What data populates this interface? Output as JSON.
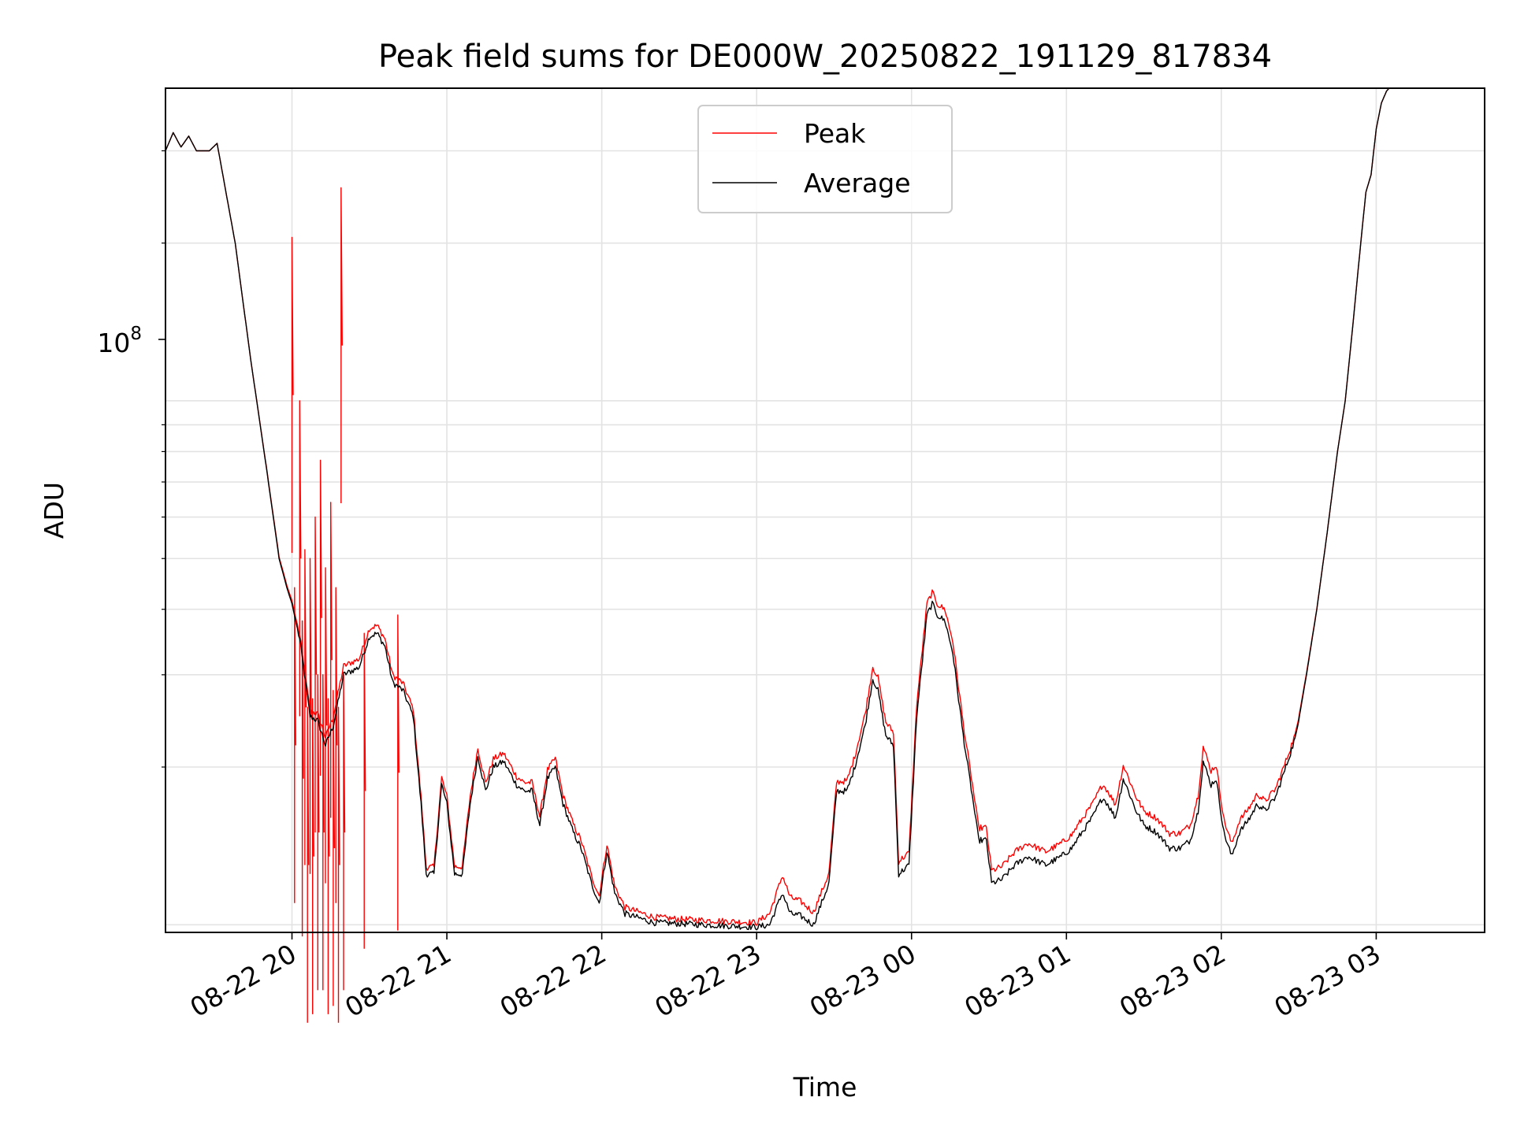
{
  "chart_data": {
    "type": "line",
    "title": "Peak field sums for DE000W_20250822_191129_817834",
    "xlabel": "Time",
    "ylabel": "ADU",
    "xlim": [
      "2025-08-22 19:11",
      "2025-08-23 03:42"
    ],
    "ylim": [
      9670000.0,
      395000000.0
    ],
    "yscale": "log",
    "ytick_label": {
      "base": "10",
      "exp": "8",
      "value": 100000000.0
    },
    "xticks": [
      {
        "t": "2025-08-22 20:00",
        "label": "08-22 20"
      },
      {
        "t": "2025-08-22 21:00",
        "label": "08-22 21"
      },
      {
        "t": "2025-08-22 22:00",
        "label": "08-22 22"
      },
      {
        "t": "2025-08-22 23:00",
        "label": "08-22 23"
      },
      {
        "t": "2025-08-23 00:00",
        "label": "08-23 00"
      },
      {
        "t": "2025-08-23 01:00",
        "label": "08-23 01"
      },
      {
        "t": "2025-08-23 02:00",
        "label": "08-23 02"
      },
      {
        "t": "2025-08-23 03:00",
        "label": "08-23 03"
      }
    ],
    "grid": true,
    "legend": {
      "position": "top-center"
    },
    "series": [
      {
        "name": "Peak",
        "color": "#ff0000"
      },
      {
        "name": "Average",
        "color": "#000000"
      }
    ],
    "average_points": [
      [
        "2025-08-22 19:11",
        300000000.0
      ],
      [
        "2025-08-22 19:14",
        325000000.0
      ],
      [
        "2025-08-22 19:17",
        305000000.0
      ],
      [
        "2025-08-22 19:20",
        320000000.0
      ],
      [
        "2025-08-22 19:23",
        300000000.0
      ],
      [
        "2025-08-22 19:28",
        300000000.0
      ],
      [
        "2025-08-22 19:31",
        310000000.0
      ],
      [
        "2025-08-22 19:38",
        200000000.0
      ],
      [
        "2025-08-22 19:44",
        120000000.0
      ],
      [
        "2025-08-22 19:50",
        75000000.0
      ],
      [
        "2025-08-22 19:55",
        50000000.0
      ],
      [
        "2025-08-22 19:58",
        44000000.0
      ],
      [
        "2025-08-22 20:00",
        41000000.0
      ],
      [
        "2025-08-22 20:03",
        35000000.0
      ],
      [
        "2025-08-22 20:07",
        25000000.0
      ],
      [
        "2025-08-22 20:10",
        24500000.0
      ],
      [
        "2025-08-22 20:13",
        22000000.0
      ],
      [
        "2025-08-22 20:16",
        24000000.0
      ],
      [
        "2025-08-22 20:20",
        30000000.0
      ],
      [
        "2025-08-22 20:26",
        31000000.0
      ],
      [
        "2025-08-22 20:30",
        35500000.0
      ],
      [
        "2025-08-22 20:33",
        36000000.0
      ],
      [
        "2025-08-22 20:36",
        34000000.0
      ],
      [
        "2025-08-22 20:39",
        29000000.0
      ],
      [
        "2025-08-22 20:43",
        28000000.0
      ],
      [
        "2025-08-22 20:47",
        25000000.0
      ],
      [
        "2025-08-22 20:50",
        17000000.0
      ],
      [
        "2025-08-22 20:52",
        12500000.0
      ],
      [
        "2025-08-22 20:55",
        12500000.0
      ],
      [
        "2025-08-22 20:58",
        18500000.0
      ],
      [
        "2025-08-22 21:00",
        17000000.0
      ],
      [
        "2025-08-22 21:03",
        12500000.0
      ],
      [
        "2025-08-22 21:06",
        12500000.0
      ],
      [
        "2025-08-22 21:09",
        17000000.0
      ],
      [
        "2025-08-22 21:12",
        21000000.0
      ],
      [
        "2025-08-22 21:15",
        18000000.0
      ],
      [
        "2025-08-22 21:18",
        20000000.0
      ],
      [
        "2025-08-22 21:22",
        20500000.0
      ],
      [
        "2025-08-22 21:27",
        18500000.0
      ],
      [
        "2025-08-22 21:30",
        18000000.0
      ],
      [
        "2025-08-22 21:33",
        18000000.0
      ],
      [
        "2025-08-22 21:36",
        15500000.0
      ],
      [
        "2025-08-22 21:39",
        19000000.0
      ],
      [
        "2025-08-22 21:42",
        20000000.0
      ],
      [
        "2025-08-22 21:45",
        17000000.0
      ],
      [
        "2025-08-22 21:49",
        15000000.0
      ],
      [
        "2025-08-22 21:52",
        14000000.0
      ],
      [
        "2025-08-22 21:56",
        12000000.0
      ],
      [
        "2025-08-22 21:59",
        11000000.0
      ],
      [
        "2025-08-22 22:02",
        13800000.0
      ],
      [
        "2025-08-22 22:05",
        11500000.0
      ],
      [
        "2025-08-22 22:09",
        10500000.0
      ],
      [
        "2025-08-22 22:20",
        10100000.0
      ],
      [
        "2025-08-22 22:40",
        10000000.0
      ],
      [
        "2025-08-22 23:00",
        9900000.0
      ],
      [
        "2025-08-22 23:05",
        10000000.0
      ],
      [
        "2025-08-22 23:10",
        11500000.0
      ],
      [
        "2025-08-22 23:13",
        10500000.0
      ],
      [
        "2025-08-22 23:17",
        10400000.0
      ],
      [
        "2025-08-22 23:22",
        10000000.0
      ],
      [
        "2025-08-22 23:28",
        12000000.0
      ],
      [
        "2025-08-22 23:31",
        18000000.0
      ],
      [
        "2025-08-22 23:35",
        18000000.0
      ],
      [
        "2025-08-22 23:38",
        20000000.0
      ],
      [
        "2025-08-22 23:42",
        24000000.0
      ],
      [
        "2025-08-22 23:45",
        29500000.0
      ],
      [
        "2025-08-22 23:47",
        28000000.0
      ],
      [
        "2025-08-22 23:50",
        23000000.0
      ],
      [
        "2025-08-22 23:53",
        22000000.0
      ],
      [
        "2025-08-22 23:55",
        12500000.0
      ],
      [
        "2025-08-22 23:59",
        13000000.0
      ],
      [
        "2025-08-23 00:02",
        25000000.0
      ],
      [
        "2025-08-23 00:06",
        39000000.0
      ],
      [
        "2025-08-23 00:08",
        41000000.0
      ],
      [
        "2025-08-23 00:10",
        39000000.0
      ],
      [
        "2025-08-23 00:13",
        38000000.0
      ],
      [
        "2025-08-23 00:16",
        33000000.0
      ],
      [
        "2025-08-23 00:20",
        23000000.0
      ],
      [
        "2025-08-23 00:24",
        17000000.0
      ],
      [
        "2025-08-23 00:26",
        14500000.0
      ],
      [
        "2025-08-23 00:29",
        14500000.0
      ],
      [
        "2025-08-23 00:31",
        12000000.0
      ],
      [
        "2025-08-23 00:35",
        12200000.0
      ],
      [
        "2025-08-23 00:40",
        13000000.0
      ],
      [
        "2025-08-23 00:45",
        13500000.0
      ],
      [
        "2025-08-23 00:52",
        13000000.0
      ],
      [
        "2025-08-23 00:58",
        13500000.0
      ],
      [
        "2025-08-23 01:02",
        14000000.0
      ],
      [
        "2025-08-23 01:06",
        15000000.0
      ],
      [
        "2025-08-23 01:10",
        16000000.0
      ],
      [
        "2025-08-23 01:14",
        17500000.0
      ],
      [
        "2025-08-23 01:16",
        17000000.0
      ],
      [
        "2025-08-23 01:19",
        16000000.0
      ],
      [
        "2025-08-23 01:22",
        19000000.0
      ],
      [
        "2025-08-23 01:24",
        18000000.0
      ],
      [
        "2025-08-23 01:27",
        16500000.0
      ],
      [
        "2025-08-23 01:30",
        15500000.0
      ],
      [
        "2025-08-23 01:35",
        15000000.0
      ],
      [
        "2025-08-23 01:40",
        14000000.0
      ],
      [
        "2025-08-23 01:44",
        14000000.0
      ],
      [
        "2025-08-23 01:48",
        14500000.0
      ],
      [
        "2025-08-23 01:51",
        16500000.0
      ],
      [
        "2025-08-23 01:53",
        20500000.0
      ],
      [
        "2025-08-23 01:56",
        18500000.0
      ],
      [
        "2025-08-23 01:58",
        19000000.0
      ],
      [
        "2025-08-23 02:01",
        15000000.0
      ],
      [
        "2025-08-23 02:04",
        13500000.0
      ],
      [
        "2025-08-23 02:07",
        15000000.0
      ],
      [
        "2025-08-23 02:11",
        16000000.0
      ],
      [
        "2025-08-23 02:14",
        17000000.0
      ],
      [
        "2025-08-23 02:17",
        16500000.0
      ],
      [
        "2025-08-23 02:21",
        17500000.0
      ],
      [
        "2025-08-23 02:25",
        20000000.0
      ],
      [
        "2025-08-23 02:29",
        23000000.0
      ],
      [
        "2025-08-23 02:33",
        30000000.0
      ],
      [
        "2025-08-23 02:37",
        40000000.0
      ],
      [
        "2025-08-23 02:41",
        56000000.0
      ],
      [
        "2025-08-23 02:45",
        80000000.0
      ],
      [
        "2025-08-23 02:48",
        100000000.0
      ],
      [
        "2025-08-23 02:51",
        140000000.0
      ],
      [
        "2025-08-23 02:54",
        200000000.0
      ],
      [
        "2025-08-23 02:56",
        250000000.0
      ],
      [
        "2025-08-23 02:58",
        270000000.0
      ],
      [
        "2025-08-23 03:00",
        330000000.0
      ],
      [
        "2025-08-23 03:02",
        370000000.0
      ],
      [
        "2025-08-23 03:04",
        390000000.0
      ],
      [
        "2025-08-23 03:05",
        395000000.0
      ]
    ],
    "peak_ratio": [
      [
        "2025-08-22 19:11",
        1.0
      ],
      [
        "2025-08-22 19:44",
        1.0
      ],
      [
        "2025-08-22 19:58",
        1.01
      ],
      [
        "2025-08-22 20:16",
        1.04
      ],
      [
        "2025-08-22 20:50",
        1.03
      ],
      [
        "2025-08-22 21:40",
        1.04
      ],
      [
        "2025-08-22 22:30",
        1.02
      ],
      [
        "2025-08-22 23:00",
        1.02
      ],
      [
        "2025-08-22 23:10",
        1.08
      ],
      [
        "2025-08-22 23:30",
        1.04
      ],
      [
        "2025-08-22 23:50",
        1.06
      ],
      [
        "2025-08-23 00:10",
        1.05
      ],
      [
        "2025-08-23 00:40",
        1.06
      ],
      [
        "2025-08-23 01:20",
        1.06
      ],
      [
        "2025-08-23 01:50",
        1.07
      ],
      [
        "2025-08-23 02:20",
        1.04
      ],
      [
        "2025-08-23 02:31",
        1.01
      ],
      [
        "2025-08-23 02:40",
        1.0
      ],
      [
        "2025-08-23 03:05",
        1.0
      ]
    ],
    "peak_spikes": [
      [
        "2025-08-22 20:00",
        205000000.0
      ],
      [
        "2025-08-22 20:01",
        44000000.0
      ],
      [
        "2025-08-22 20:03",
        100000000.0
      ],
      [
        "2025-08-22 20:04",
        38000000.0
      ],
      [
        "2025-08-22 20:05",
        52000000.0
      ],
      [
        "2025-08-22 20:06",
        26000000.0
      ],
      [
        "2025-08-22 20:07",
        50000000.0
      ],
      [
        "2025-08-22 20:08",
        27000000.0
      ],
      [
        "2025-08-22 20:09",
        60000000.0
      ],
      [
        "2025-08-22 20:10",
        30000000.0
      ],
      [
        "2025-08-22 20:11",
        77000000.0
      ],
      [
        "2025-08-22 20:12",
        30000000.0
      ],
      [
        "2025-08-22 20:13",
        48000000.0
      ],
      [
        "2025-08-22 20:14",
        27000000.0
      ],
      [
        "2025-08-22 20:15",
        64000000.0
      ],
      [
        "2025-08-22 20:16",
        28000000.0
      ],
      [
        "2025-08-22 20:17",
        44000000.0
      ],
      [
        "2025-08-22 20:18",
        26000000.0
      ],
      [
        "2025-08-22 20:19",
        255000000.0
      ],
      [
        "2025-08-22 20:20",
        30000000.0
      ],
      [
        "2025-08-22 20:28",
        36000000.0
      ],
      [
        "2025-08-22 20:41",
        39000000.0
      ]
    ]
  }
}
